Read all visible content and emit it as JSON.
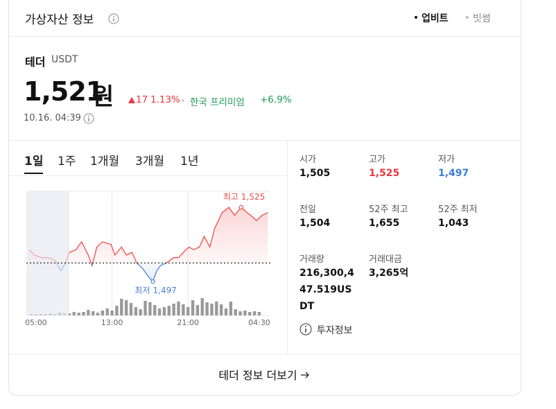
{
  "header": {
    "title": "가상자산 정보",
    "exchanges": [
      "업비트",
      "빗썸"
    ],
    "active_exchange": 0
  },
  "coin": {
    "name": "테더",
    "symbol": "USDT",
    "price": "1,521",
    "unit": "원",
    "change": "17",
    "change_pct": "1.13%",
    "premium_label": "한국 프리미엄",
    "premium": "+6.9%",
    "timestamp": "10.16. 04:39"
  },
  "periods": [
    "1일",
    "1주",
    "1개월",
    "3개월",
    "1년"
  ],
  "active_period": 0,
  "chart_data": {
    "type": "line",
    "x": [
      -0.7,
      -0.2,
      0.6,
      1.3,
      2.0,
      2.6,
      3.1,
      3.5,
      4.2,
      4.8,
      5.5,
      5.9,
      6.4,
      7.0,
      7.9,
      8.3,
      9.0,
      9.5,
      10.1,
      10.6,
      11.2,
      11.8,
      12.3,
      12.7,
      13.1,
      13.7,
      14.5,
      15.0,
      15.5,
      16.1,
      16.6,
      17.2,
      17.7,
      18.3,
      18.8,
      19.6,
      20.3,
      20.9,
      21.6,
      22.2,
      22.6,
      23.2,
      23.8,
      24.4
    ],
    "values": [
      1509,
      1507,
      1506,
      1506,
      1505,
      1501,
      1504,
      1508,
      1509,
      1512,
      1507,
      1503,
      1510,
      1512,
      1511,
      1507,
      1510,
      1507,
      1508,
      1504,
      1502,
      1499,
      1497,
      1501,
      1503,
      1504,
      1506,
      1506,
      1508,
      1510,
      1509,
      1510,
      1514,
      1510,
      1517,
      1523,
      1525,
      1522,
      1525,
      1523,
      1522,
      1520,
      1522,
      1523
    ],
    "baseline": 1504,
    "up_color": "#ef4b4b",
    "down_color": "#4a80d9",
    "xlim": [
      -1.02,
      24.67
    ],
    "ylim": [
      1490,
      1531
    ],
    "xticks": [
      {
        "value": 0,
        "label": "05:00"
      },
      {
        "value": 8,
        "label": "13:00"
      },
      {
        "value": 16,
        "label": "21:00"
      },
      {
        "value": 23.5,
        "label": "04:30"
      }
    ],
    "shaded_xlim": [
      -1.02,
      3.5
    ],
    "volume": {
      "x": [
        -0.5,
        0,
        0.5,
        1,
        1.5,
        2,
        2.5,
        3,
        3.5,
        4,
        4.5,
        5,
        5.5,
        6,
        6.5,
        7,
        7.5,
        8,
        8.5,
        9,
        9.5,
        10,
        10.5,
        11,
        11.5,
        12,
        12.5,
        13,
        13.5,
        14,
        14.5,
        15,
        15.5,
        16,
        16.5,
        17,
        17.5,
        18,
        18.5,
        19,
        19.5,
        20,
        20.5,
        21,
        21.5,
        22,
        22.5,
        23,
        23.5
      ],
      "values": [
        2,
        2,
        2,
        2,
        3,
        2,
        4,
        3,
        3,
        5,
        4,
        5,
        8,
        6,
        4,
        7,
        10,
        7,
        14,
        24,
        22,
        18,
        12,
        9,
        21,
        19,
        15,
        10,
        12,
        14,
        17,
        20,
        16,
        12,
        22,
        15,
        25,
        19,
        17,
        20,
        16,
        10,
        20,
        9,
        6,
        7,
        5,
        6,
        5
      ],
      "color": "#9a9a9a"
    },
    "vlim": [
      0,
      30
    ],
    "annotations": [
      {
        "label": "최고",
        "value_label": "1,525",
        "x": 21.6,
        "value": 1525
      },
      {
        "label": "최저",
        "value_label": "1,497",
        "x": 12.3,
        "value": 1497
      }
    ]
  },
  "stats": [
    {
      "label": "시가",
      "value": "1,505"
    },
    {
      "label": "고가",
      "value": "1,525",
      "color": "#e8383d"
    },
    {
      "label": "저가",
      "value": "1,497",
      "color": "#3d7bd9"
    },
    {
      "label": "전일",
      "value": "1,504"
    },
    {
      "label": "52주 최고",
      "value": "1,655"
    },
    {
      "label": "52주 최저",
      "value": "1,043"
    },
    {
      "label": "거래량",
      "value": "216,300,447.519USDT"
    },
    {
      "label": "거래대금",
      "value": "3,265억"
    }
  ],
  "info_link": "투자정보",
  "more_link": "테더 정보 더보기"
}
